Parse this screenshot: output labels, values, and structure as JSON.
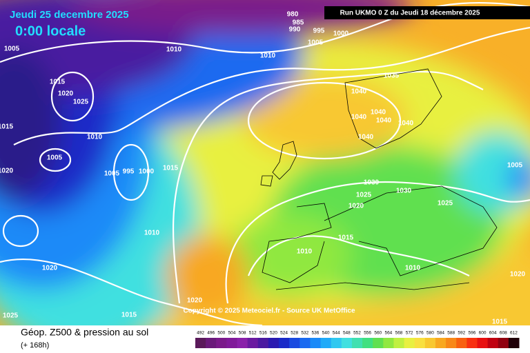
{
  "header": {
    "date": "Jeudi 25 decembre 2025",
    "time": "0:00 locale",
    "run": "Run UKMO 0 Z du Jeudi 18 décembre 2025"
  },
  "copyright": "Copyright © 2025 Meteociel.fr - Source UK MetOffice",
  "footer": {
    "title": "Géop. Z500 & pression au sol",
    "lead": "(+ 168h)"
  },
  "isobar_labels": [
    "980",
    "985",
    "990",
    "995",
    "1000",
    "1005",
    "1005",
    "1010",
    "1010",
    "1015",
    "1020",
    "1025",
    "1035",
    "1040",
    "1040",
    "1040",
    "1040",
    "1040",
    "1040",
    "1010",
    "1015",
    "1005",
    "1020",
    "1005",
    "995",
    "1000",
    "1015",
    "1030",
    "1030",
    "1025",
    "1025",
    "1020",
    "1005",
    "1010",
    "1015",
    "1010",
    "1020",
    "1010",
    "1020",
    "1020",
    "1025",
    "1015",
    "1015"
  ],
  "scale": {
    "values": [
      492,
      496,
      500,
      504,
      508,
      512,
      516,
      520,
      524,
      528,
      532,
      536,
      540,
      544,
      548,
      552,
      556,
      560,
      564,
      568,
      572,
      576,
      580,
      584,
      588,
      592,
      596,
      600,
      604,
      608,
      612
    ],
    "colors": [
      "#5a1a5a",
      "#6a1a7a",
      "#7a1a8a",
      "#801a9a",
      "#8a20aa",
      "#6a1aa0",
      "#4a1aa0",
      "#2a1ab0",
      "#1a2ac8",
      "#1a4ae0",
      "#1a6af0",
      "#1a8af8",
      "#20aaf8",
      "#30c8f0",
      "#40e0e0",
      "#40e0b0",
      "#40e080",
      "#60e050",
      "#90e840",
      "#c0f040",
      "#e8f040",
      "#f8e040",
      "#f8c830",
      "#f8a820",
      "#f88818",
      "#f86010",
      "#f83010",
      "#e81010",
      "#c00010",
      "#900010",
      "#200008"
    ]
  }
}
